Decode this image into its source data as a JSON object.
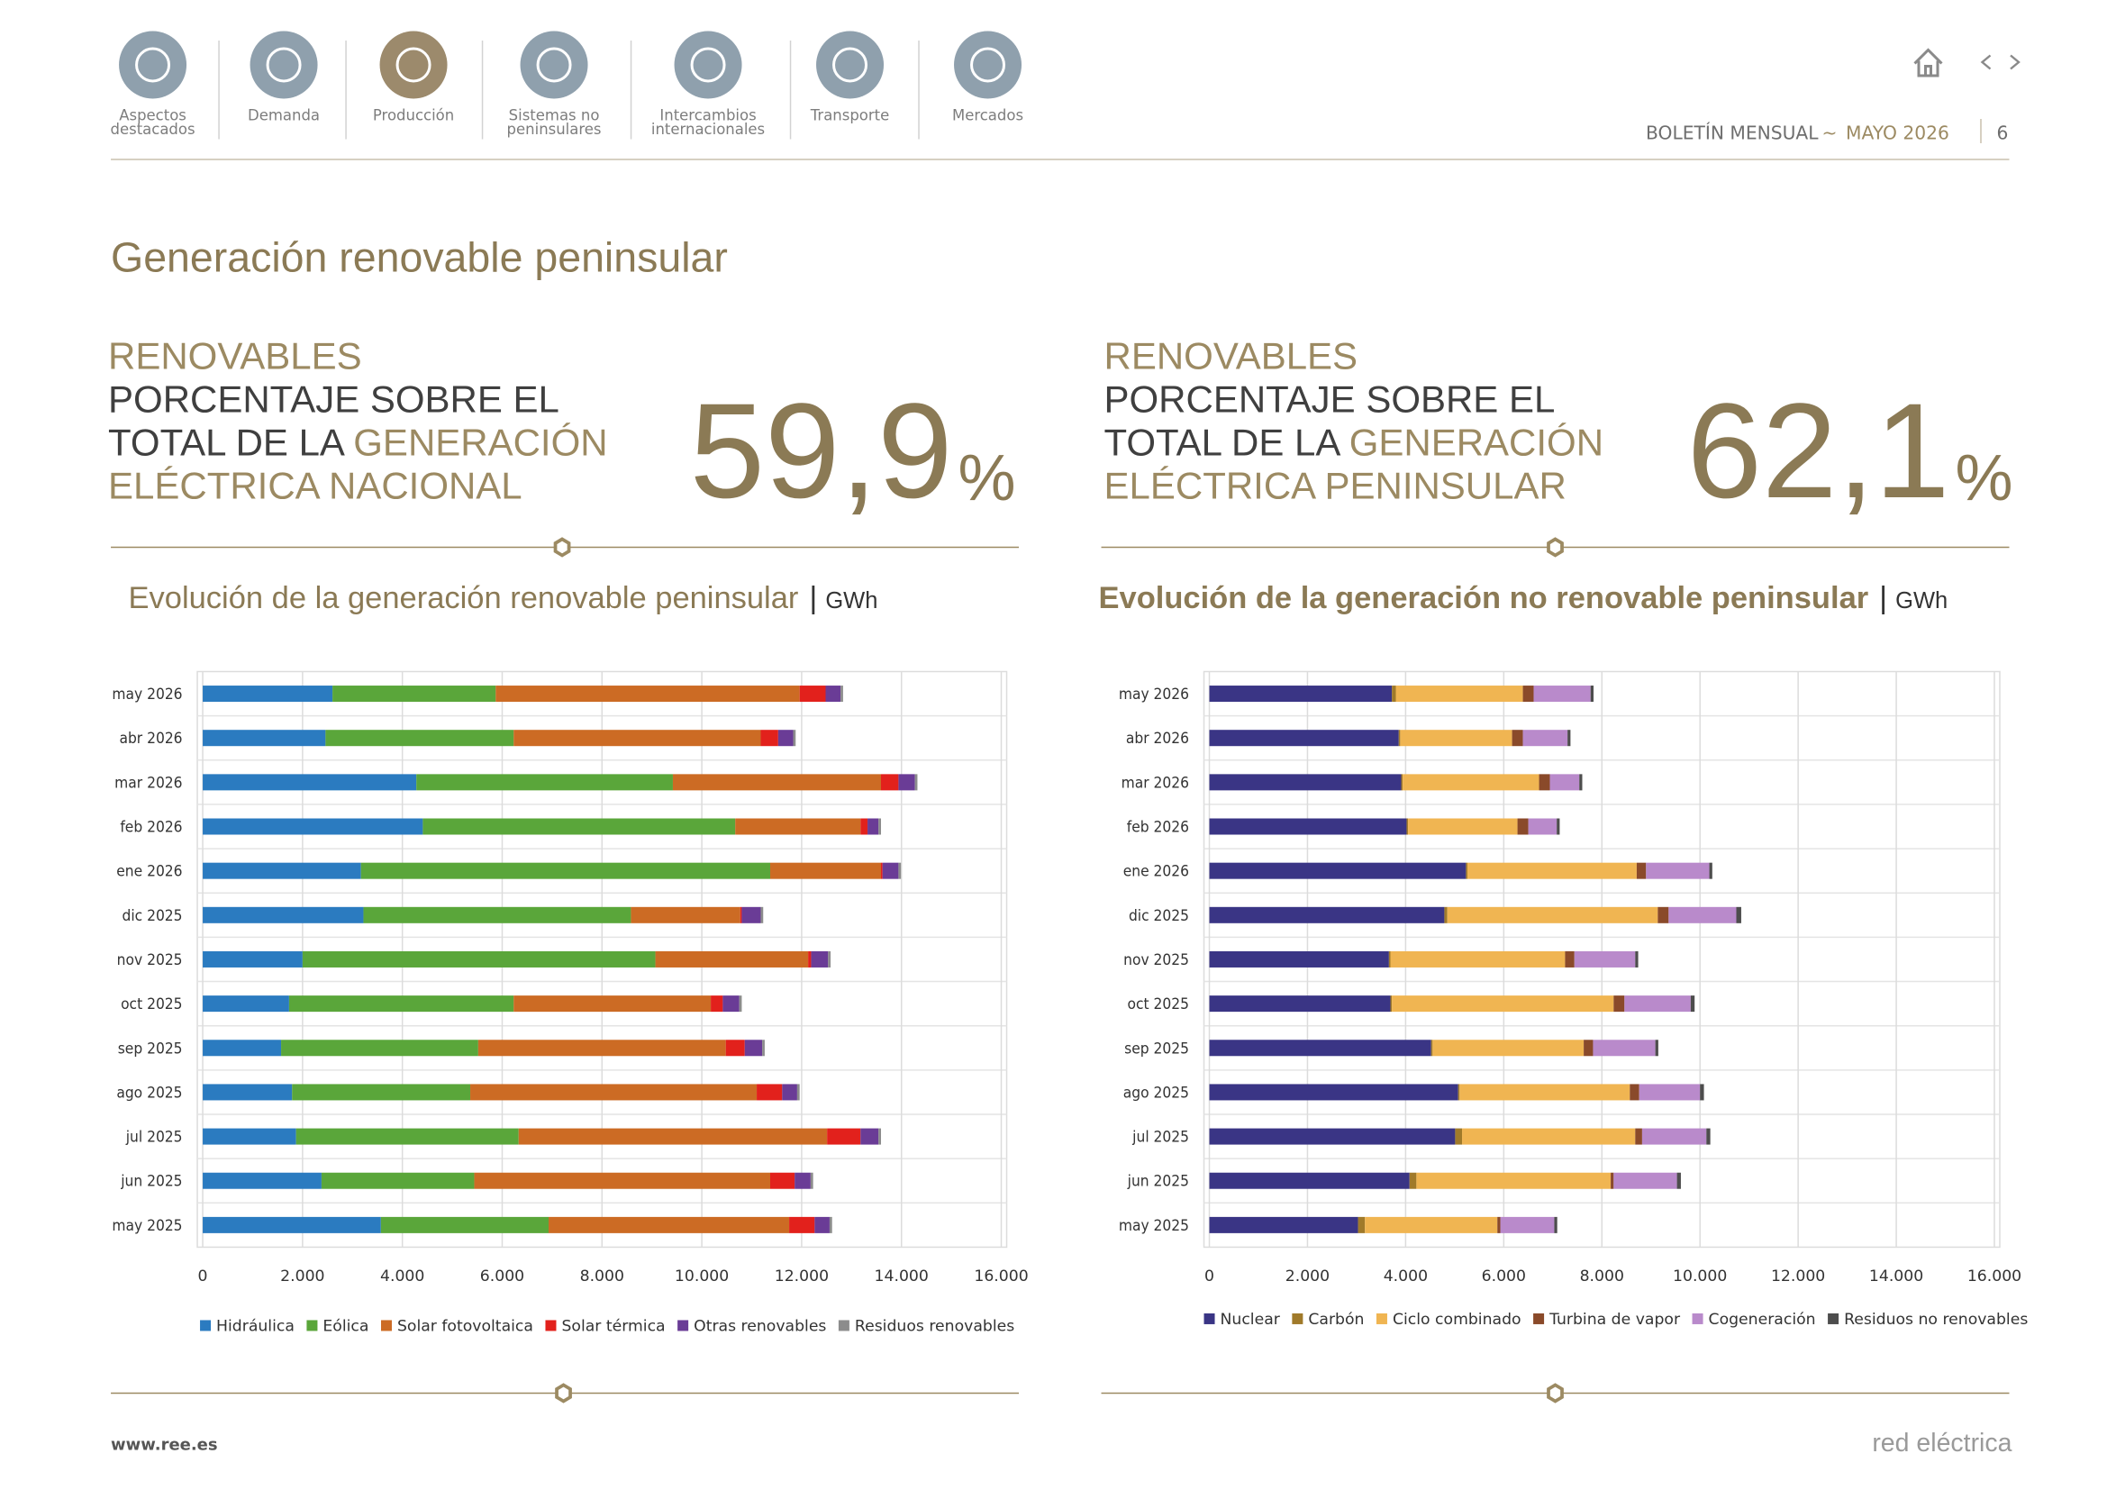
{
  "nav": [
    {
      "label": [
        "Aspectos",
        "destacados"
      ]
    },
    {
      "label": [
        "Demanda"
      ]
    },
    {
      "label": [
        "Producción"
      ]
    },
    {
      "label": [
        "Sistemas no",
        "peninsulares"
      ]
    },
    {
      "label": [
        "Intercambios",
        "internacionales"
      ]
    },
    {
      "label": [
        "Transporte"
      ]
    },
    {
      "label": [
        "Mercados"
      ]
    }
  ],
  "header": {
    "publication": "BOLETÍN MENSUAL",
    "separator": "~",
    "period": "MAYO 2026",
    "page": "6"
  },
  "title": "Generación renovable peninsular",
  "kpis": [
    {
      "label": [
        [
          "RENOVABLES"
        ],
        [
          "PORCENTAJE SOBRE EL"
        ],
        [
          "TOTAL DE LA ",
          "GENERACIÓN"
        ],
        [
          "ELÉCTRICA NACIONAL"
        ]
      ],
      "value": "59,9",
      "unit": "%"
    },
    {
      "label": [
        [
          "RENOVABLES"
        ],
        [
          "PORCENTAJE SOBRE EL"
        ],
        [
          "TOTAL DE LA ",
          "GENERACIÓN"
        ],
        [
          "ELÉCTRICA PENINSULAR"
        ]
      ],
      "value": "62,1",
      "unit": "%"
    }
  ],
  "chart_data": [
    {
      "type": "bar",
      "orientation": "horizontal",
      "stacked": true,
      "title": "Evolución de la generación renovable peninsular",
      "unit": "GWh",
      "categories": [
        "may 2026",
        "abr 2026",
        "mar 2026",
        "feb 2026",
        "ene 2026",
        "dic 2025",
        "nov 2025",
        "oct 2025",
        "sep 2025",
        "ago 2025",
        "jul 2025",
        "jun 2025",
        "may 2025"
      ],
      "series": [
        {
          "name": "Hidráulica",
          "color": "#2b7bc0",
          "values": [
            2600,
            2460,
            4280,
            4410,
            3170,
            3220,
            2000,
            1730,
            1570,
            1790,
            1870,
            2380,
            3570
          ]
        },
        {
          "name": "Eólica",
          "color": "#5aa63a",
          "values": [
            3270,
            3770,
            5140,
            6260,
            8200,
            5360,
            7070,
            4500,
            3950,
            3570,
            4460,
            3060,
            3360
          ]
        },
        {
          "name": "Solar fotovoltaica",
          "color": "#cc6b24",
          "values": [
            6090,
            4950,
            4170,
            2510,
            2220,
            2190,
            3060,
            3950,
            4960,
            5740,
            6180,
            5930,
            4820
          ]
        },
        {
          "name": "Solar térmica",
          "color": "#e2211c",
          "values": [
            520,
            350,
            350,
            140,
            30,
            30,
            60,
            240,
            380,
            510,
            670,
            490,
            510
          ]
        },
        {
          "name": "Otras renovables",
          "color": "#6a3c96",
          "values": [
            300,
            300,
            330,
            220,
            320,
            380,
            340,
            330,
            350,
            300,
            360,
            320,
            300
          ]
        },
        {
          "name": "Residuos renovables",
          "color": "#8c8c8c",
          "values": [
            50,
            50,
            50,
            50,
            50,
            50,
            50,
            50,
            50,
            50,
            50,
            50,
            50
          ]
        }
      ],
      "xlim": [
        0,
        16000
      ],
      "xticks": [
        0,
        {
          "value": 2000,
          "label": "2.000"
        },
        {
          "value": 4000,
          "label": "4.000"
        },
        {
          "value": 6000,
          "label": "6.000"
        },
        {
          "value": 8000,
          "label": "8.000"
        },
        {
          "value": 10000,
          "label": "10.000"
        },
        {
          "value": 12000,
          "label": "12.000"
        },
        {
          "value": 14000,
          "label": "14.000"
        },
        {
          "value": 16000,
          "label": "16.000"
        }
      ],
      "grid": true,
      "legend": "bottom"
    },
    {
      "type": "bar",
      "orientation": "horizontal",
      "stacked": true,
      "title": "Evolución de la generación no renovable peninsular",
      "unit": "GWh",
      "categories": [
        "may 2026",
        "abr 2026",
        "mar 2026",
        "feb 2026",
        "ene 2026",
        "dic 2025",
        "nov 2025",
        "oct 2025",
        "sep 2025",
        "ago 2025",
        "jul 2025",
        "jun 2025",
        "may 2025"
      ],
      "series": [
        {
          "name": "Nuclear",
          "color": "#3a3585",
          "values": [
            3720,
            3860,
            3910,
            4020,
            5230,
            4790,
            3660,
            3690,
            4520,
            5070,
            5010,
            4080,
            3030
          ]
        },
        {
          "name": "Carbón",
          "color": "#a07a2a",
          "values": [
            80,
            30,
            30,
            30,
            30,
            60,
            30,
            30,
            30,
            30,
            140,
            140,
            140
          ]
        },
        {
          "name": "Ciclo combinado",
          "color": "#f0b552",
          "values": [
            2590,
            2280,
            2780,
            2230,
            3450,
            4290,
            3560,
            4520,
            3080,
            3470,
            3530,
            3960,
            2700
          ]
        },
        {
          "name": "Turbina de vapor",
          "color": "#8a4a2a",
          "values": [
            220,
            220,
            220,
            220,
            190,
            220,
            190,
            220,
            190,
            190,
            140,
            60,
            60
          ]
        },
        {
          "name": "Cogeneración",
          "color": "#b98acb",
          "values": [
            1160,
            910,
            600,
            580,
            1290,
            1380,
            1240,
            1350,
            1270,
            1240,
            1310,
            1290,
            1100
          ]
        },
        {
          "name": "Residuos no renovables",
          "color": "#4d4d4d",
          "values": [
            60,
            60,
            60,
            60,
            60,
            100,
            60,
            80,
            60,
            80,
            80,
            80,
            60
          ]
        }
      ],
      "xlim": [
        0,
        16000
      ],
      "xticks": [
        0,
        {
          "value": 2000,
          "label": "2.000"
        },
        {
          "value": 4000,
          "label": "4.000"
        },
        {
          "value": 6000,
          "label": "6.000"
        },
        {
          "value": 8000,
          "label": "8.000"
        },
        {
          "value": 10000,
          "label": "10.000"
        },
        {
          "value": 12000,
          "label": "12.000"
        },
        {
          "value": 14000,
          "label": "14.000"
        },
        {
          "value": 16000,
          "label": "16.000"
        }
      ],
      "grid": true,
      "legend": "bottom"
    }
  ],
  "footer": {
    "url": "www.ree.es",
    "brand": "red eléctrica"
  }
}
